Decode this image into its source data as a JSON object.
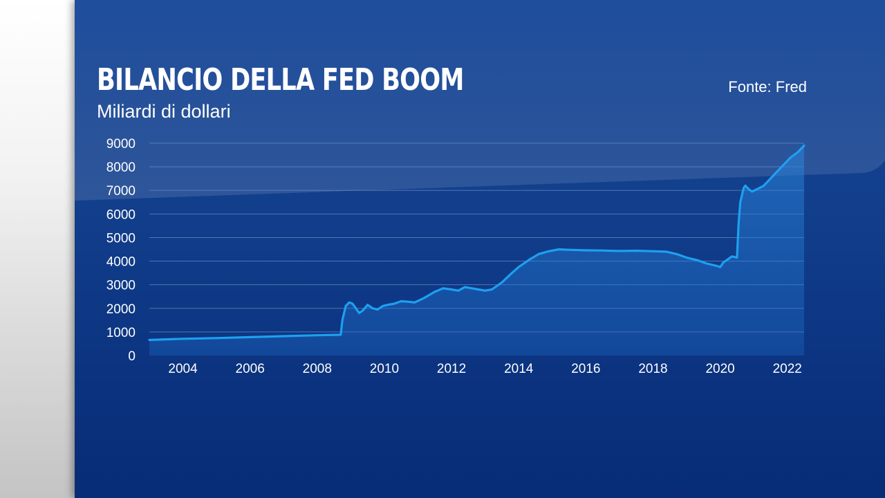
{
  "header": {
    "title": "BILANCIO DELLA FED BOOM",
    "subtitle": "Miliardi di dollari",
    "source": "Fonte: Fred"
  },
  "colors": {
    "line": "#1ea0f0",
    "area": "#1e78d2",
    "grid": "#6f8fc4",
    "text": "#ffffff"
  },
  "chart_data": {
    "type": "area",
    "title": "BILANCIO DELLA FED BOOM",
    "subtitle": "Miliardi di dollari",
    "xlabel": "",
    "ylabel": "",
    "xlim": [
      2003.0,
      2022.5
    ],
    "ylim": [
      0,
      9000
    ],
    "yticks": [
      "0",
      "1000",
      "2000",
      "3000",
      "4000",
      "5000",
      "6000",
      "7000",
      "8000",
      "9000"
    ],
    "xticks": [
      "2004",
      "2006",
      "2008",
      "2010",
      "2012",
      "2014",
      "2016",
      "2018",
      "2020",
      "2022"
    ],
    "grid": true,
    "legend": "none",
    "series": [
      {
        "x": [
          2003.0,
          2004.0,
          2005.0,
          2006.0,
          2007.0,
          2008.0,
          2008.7,
          2008.75,
          2008.85,
          2008.95,
          2009.05,
          2009.15,
          2009.25,
          2009.35,
          2009.5,
          2009.65,
          2009.8,
          2009.95,
          2010.1,
          2010.3,
          2010.5,
          2010.7,
          2010.9,
          2011.2,
          2011.5,
          2011.75,
          2012.0,
          2012.2,
          2012.4,
          2012.6,
          2012.8,
          2013.0,
          2013.2,
          2013.5,
          2013.8,
          2014.0,
          2014.3,
          2014.6,
          2014.9,
          2015.2,
          2015.5,
          2016.0,
          2016.5,
          2017.0,
          2017.5,
          2018.0,
          2018.4,
          2018.7,
          2019.0,
          2019.3,
          2019.6,
          2019.9,
          2020.0,
          2020.1,
          2020.2,
          2020.35,
          2020.5,
          2020.55,
          2020.6,
          2020.7,
          2020.75,
          2020.85,
          2020.95,
          2021.1,
          2021.3,
          2021.5,
          2021.7,
          2021.9,
          2022.1,
          2022.3,
          2022.5
        ],
        "y": [
          660,
          710,
          740,
          780,
          820,
          860,
          880,
          1500,
          2100,
          2250,
          2200,
          2000,
          1800,
          1900,
          2150,
          2000,
          1950,
          2100,
          2150,
          2200,
          2300,
          2280,
          2250,
          2450,
          2700,
          2850,
          2800,
          2750,
          2900,
          2850,
          2800,
          2750,
          2800,
          3100,
          3500,
          3750,
          4050,
          4300,
          4420,
          4500,
          4480,
          4460,
          4450,
          4430,
          4440,
          4420,
          4400,
          4300,
          4150,
          4050,
          3900,
          3800,
          3750,
          3950,
          4050,
          4200,
          4150,
          5600,
          6500,
          7100,
          7200,
          7050,
          6950,
          7050,
          7200,
          7500,
          7800,
          8100,
          8400,
          8600,
          8900
        ]
      }
    ]
  }
}
